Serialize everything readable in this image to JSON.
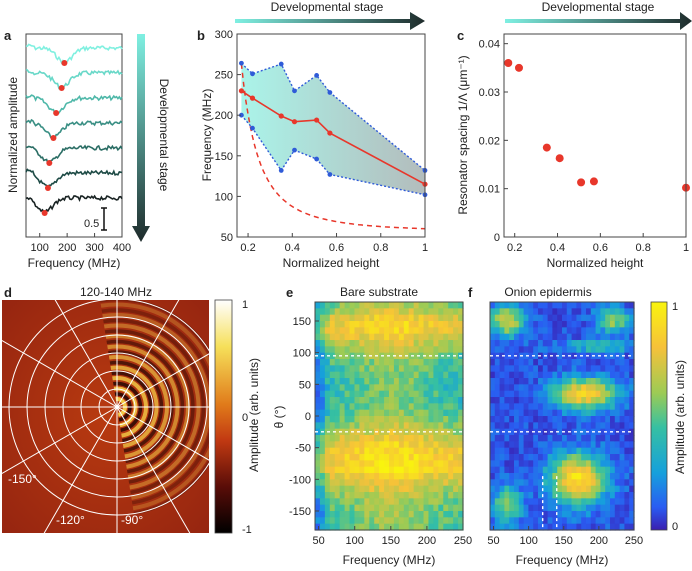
{
  "colors": {
    "red": "#e8372b",
    "blue": "#2f5bd8",
    "teal_light": "#7ff0e2",
    "dark": "#1e2b2b",
    "grid": "#ffffff"
  },
  "labels": {
    "a": "a",
    "b": "b",
    "c": "c",
    "d": "d",
    "e": "e",
    "f": "f",
    "dev_stage": "Developmental stage",
    "dev_stage_vertical": "Developmental stage"
  },
  "chart_data": [
    {
      "panel": "a",
      "type": "line",
      "xlabel": "Frequency (MHz)",
      "ylabel": "Normalized amplitude",
      "xticks": [
        "100",
        "200",
        "300",
        "400"
      ],
      "xlim": [
        50,
        400
      ],
      "scale_bar_label": "0.5",
      "series": [
        {
          "name": "trace1",
          "color": "#80f0e0",
          "dip_freq": 190
        },
        {
          "name": "trace2",
          "color": "#68d8c8",
          "dip_freq": 180
        },
        {
          "name": "trace3",
          "color": "#4fb8a9",
          "dip_freq": 160
        },
        {
          "name": "trace4",
          "color": "#3a8f84",
          "dip_freq": 150
        },
        {
          "name": "trace5",
          "color": "#2a6d64",
          "dip_freq": 135
        },
        {
          "name": "trace6",
          "color": "#1d4a45",
          "dip_freq": 130
        },
        {
          "name": "trace7",
          "color": "#1a2424",
          "dip_freq": 118
        }
      ]
    },
    {
      "panel": "b",
      "type": "line",
      "xlabel": "Normalized height",
      "ylabel": "Frequency (MHz)",
      "xlim": [
        0.15,
        1.0
      ],
      "ylim": [
        50,
        300
      ],
      "xticks": [
        "0.2",
        "0.4",
        "0.6",
        "0.8",
        "1"
      ],
      "yticks": [
        "50",
        "100",
        "150",
        "200",
        "250",
        "300"
      ],
      "x": [
        0.17,
        0.22,
        0.35,
        0.41,
        0.51,
        0.57,
        1.0
      ],
      "series": [
        {
          "name": "mean",
          "values": [
            230,
            221,
            199,
            192,
            194,
            178,
            115
          ]
        },
        {
          "name": "upper",
          "values": [
            264,
            251,
            263,
            230,
            249,
            228,
            132
          ]
        },
        {
          "name": "lower",
          "values": [
            200,
            184,
            132,
            157,
            146,
            127,
            102
          ]
        },
        {
          "name": "model",
          "style": "dashed",
          "values_note": "1/x decay"
        }
      ]
    },
    {
      "panel": "c",
      "type": "scatter",
      "xlabel": "Normalized height",
      "ylabel": "Resonator spacing 1/Λ (μm⁻¹)",
      "xlim": [
        0.15,
        1.0
      ],
      "ylim": [
        0,
        0.042
      ],
      "xticks": [
        "0.2",
        "0.4",
        "0.6",
        "0.8",
        "1"
      ],
      "yticks": [
        "0",
        "0.01",
        "0.02",
        "0.03",
        "0.04"
      ],
      "x": [
        0.17,
        0.22,
        0.35,
        0.41,
        0.51,
        0.57,
        1.0
      ],
      "y": [
        0.036,
        0.035,
        0.0185,
        0.0163,
        0.0113,
        0.0115,
        0.0102
      ]
    },
    {
      "panel": "d",
      "type": "heatmap",
      "title": "120-140 MHz",
      "colorbar_label": "Amplitude (arb. units)",
      "colorbar_ticks": [
        "1",
        "0",
        "-1"
      ],
      "angle_labels": [
        "-150°",
        "-120°",
        "-90°"
      ]
    },
    {
      "panel": "e",
      "type": "heatmap",
      "title": "Bare substrate",
      "xlabel": "Frequency (MHz)",
      "ylabel": "θ (°)",
      "xlim": [
        45,
        250
      ],
      "ylim": [
        -180,
        180
      ],
      "xticks": [
        "50",
        "100",
        "150",
        "200",
        "250"
      ],
      "yticks": [
        "150",
        "100",
        "50",
        "0",
        "-50",
        "-100",
        "-150"
      ],
      "dashed_theta": [
        95,
        -25
      ]
    },
    {
      "panel": "f",
      "type": "heatmap",
      "title": "Onion epidermis",
      "xlabel": "Frequency (MHz)",
      "xlim": [
        45,
        250
      ],
      "ylim": [
        -180,
        180
      ],
      "xticks": [
        "50",
        "100",
        "150",
        "200",
        "250"
      ],
      "colorbar_label": "Amplitude (arb. units)",
      "colorbar_ticks": [
        "1",
        "0"
      ],
      "dashed_theta": [
        95,
        -25
      ],
      "dashed_freq": [
        120,
        140
      ]
    }
  ]
}
